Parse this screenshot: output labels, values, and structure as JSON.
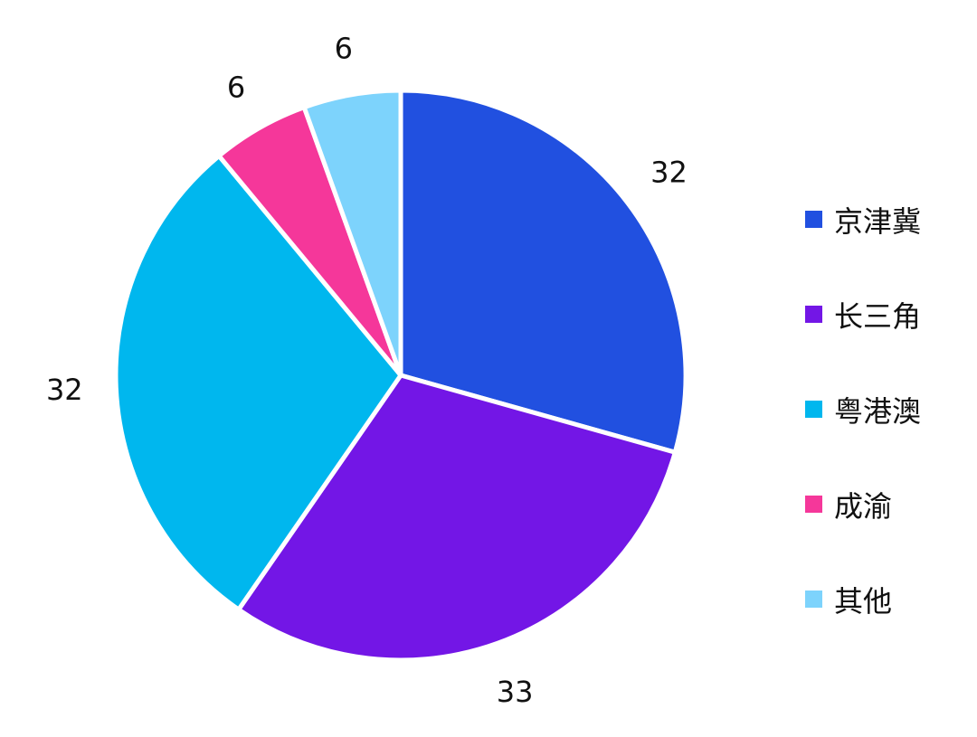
{
  "chart_data": {
    "type": "pie",
    "categories": [
      "京津冀",
      "长三角",
      "粤港澳",
      "成渝",
      "其他"
    ],
    "values": [
      32,
      33,
      32,
      6,
      6
    ],
    "colors": [
      "#2150E0",
      "#7316E6",
      "#00B7EE",
      "#F5379A",
      "#7DD3FC"
    ],
    "data_labels": [
      "32",
      "33",
      "32",
      "6",
      "6"
    ],
    "start_angle": "12 o'clock",
    "direction": "clockwise",
    "legend_position": "right"
  }
}
